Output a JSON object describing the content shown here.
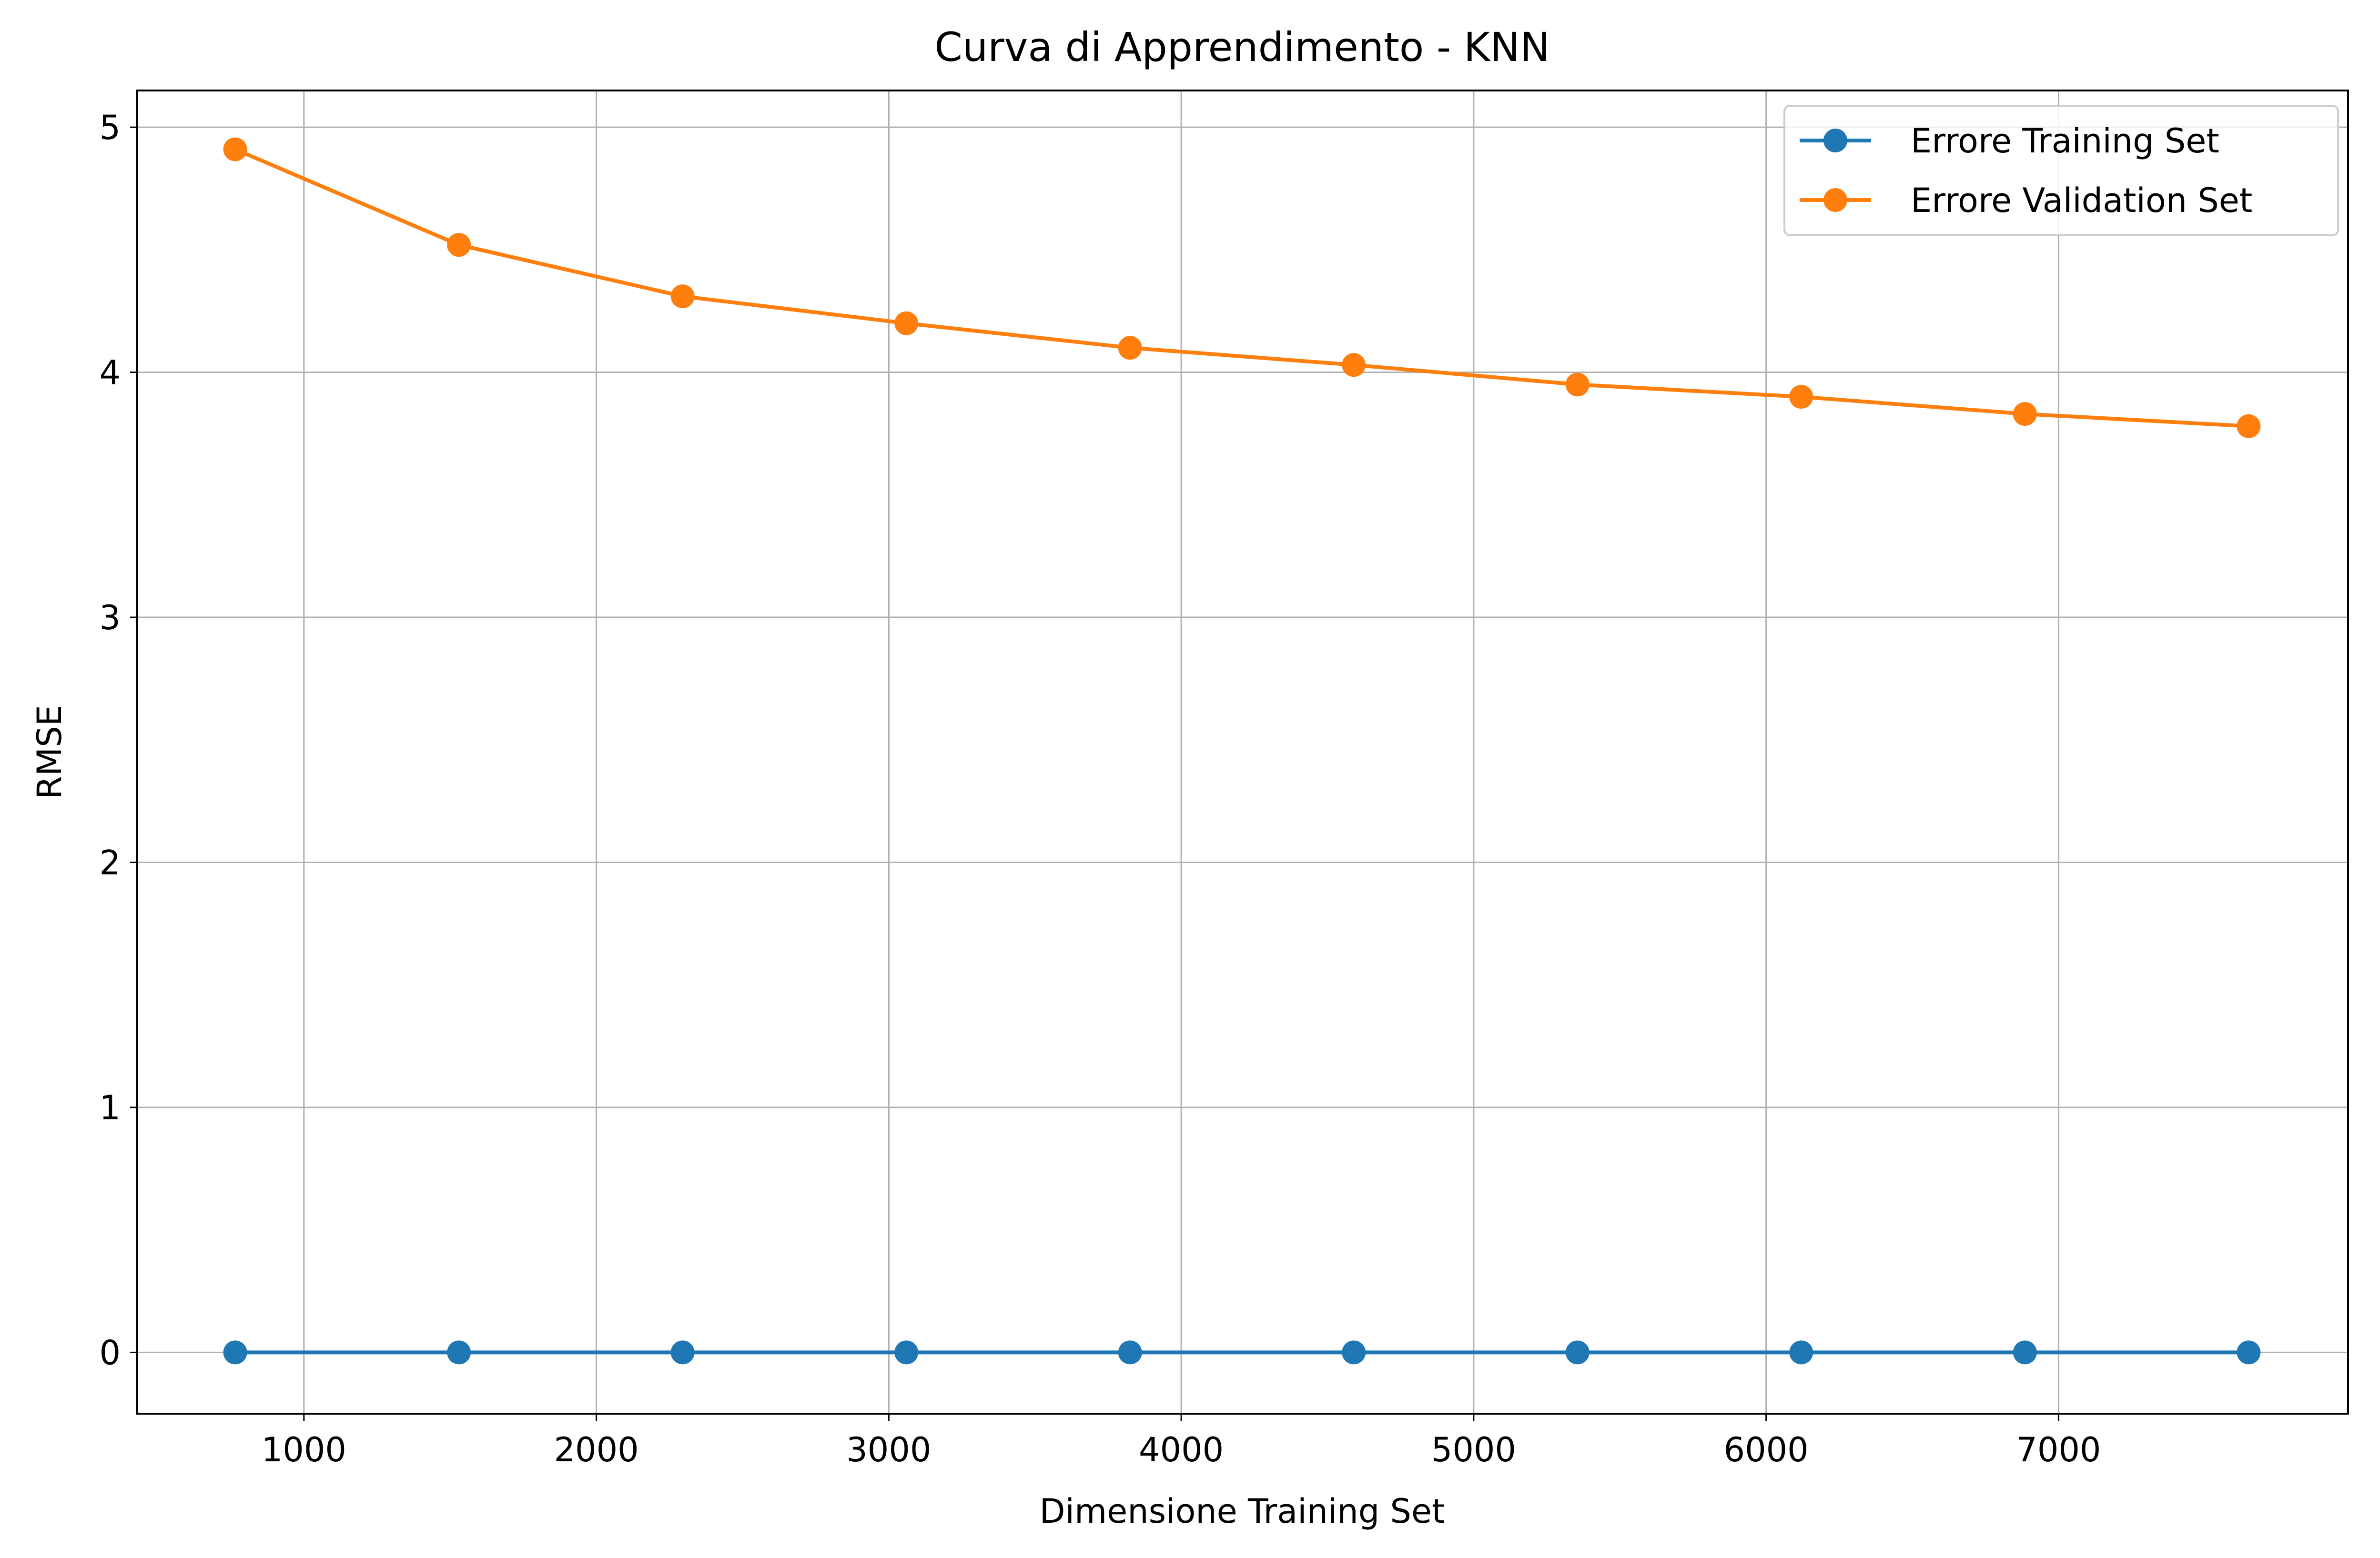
{
  "chart_data": {
    "type": "line",
    "title": "Curva di Apprendimento - KNN",
    "xlabel": "Dimensione Training Set",
    "ylabel": "RMSE",
    "xlim": [
      430,
      7990
    ],
    "ylim": [
      -0.25,
      5.15
    ],
    "x_ticks": [
      "1000",
      "2000",
      "3000",
      "4000",
      "5000",
      "6000",
      "7000"
    ],
    "y_ticks": [
      "0",
      "1",
      "2",
      "3",
      "4",
      "5"
    ],
    "grid": true,
    "legend_position": "top-right",
    "x": [
      765,
      1530,
      2295,
      3060,
      3825,
      4590,
      5355,
      6120,
      6885,
      7650
    ],
    "series": [
      {
        "name": "Errore Training Set",
        "color": "#1f77b4",
        "values": [
          0,
          0,
          0,
          0,
          0,
          0,
          0,
          0,
          0,
          0
        ]
      },
      {
        "name": "Errore Validation Set",
        "color": "#ff7f0e",
        "values": [
          4.91,
          4.52,
          4.31,
          4.2,
          4.1,
          4.03,
          3.95,
          3.9,
          3.83,
          3.78
        ]
      }
    ]
  }
}
